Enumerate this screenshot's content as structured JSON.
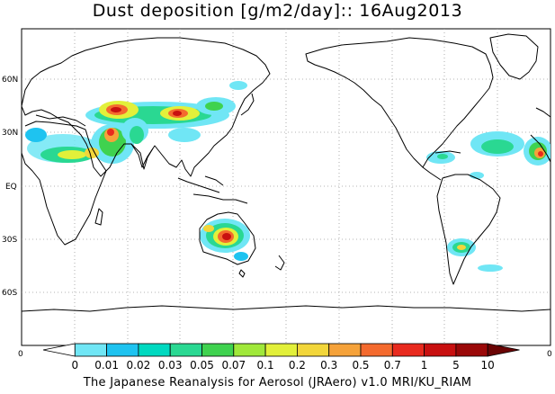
{
  "title": "Dust deposition [g/m2/day]:: 16Aug2013",
  "latitude_labels": [
    "60N",
    "30N",
    "EQ",
    "30S",
    "60S"
  ],
  "edge_labels": {
    "left": "0",
    "right": "0"
  },
  "colorbar": {
    "ticks": [
      "0",
      "0.01",
      "0.02",
      "0.03",
      "0.05",
      "0.07",
      "0.1",
      "0.2",
      "0.3",
      "0.5",
      "0.7",
      "1",
      "5",
      "10"
    ],
    "colors": [
      "#ffffff",
      "#70e6f5",
      "#1ec3f0",
      "#00d9c0",
      "#2ad892",
      "#3fd24f",
      "#a0e83a",
      "#e2f03a",
      "#f2d63a",
      "#f5a23a",
      "#f46a2e",
      "#e82a1e",
      "#c81010",
      "#9a0808",
      "#6a0404"
    ]
  },
  "credit": "The Japanese Reanalysis for Aerosol (JRAero) v1.0 MRI/KU_RIAM"
}
